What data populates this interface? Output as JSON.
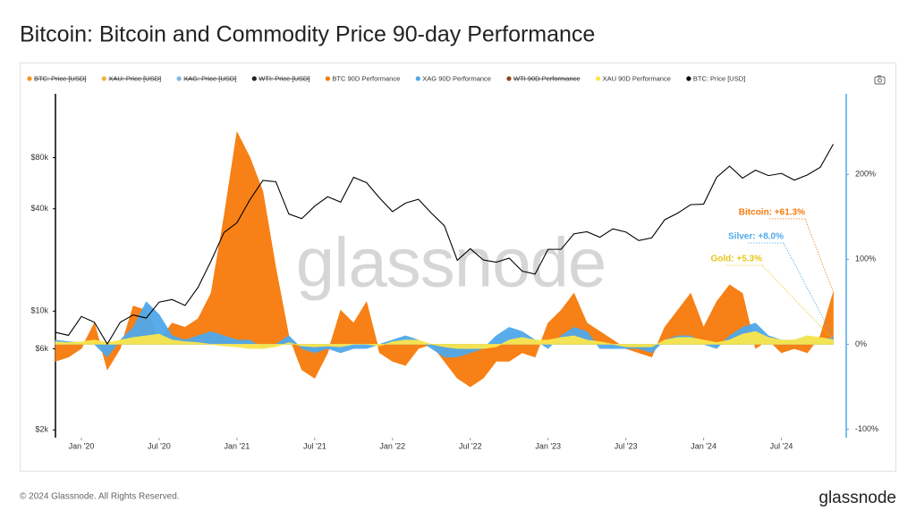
{
  "header": {
    "title": "Bitcoin: Bitcoin and Commodity Price 90-day Performance"
  },
  "footer": {
    "copyright": "© 2024 Glassnode. All Rights Reserved.",
    "logo": "glassnode"
  },
  "chart_data": {
    "type": "area",
    "watermark": "glassnode",
    "x": [
      "2019-11",
      "2019-12",
      "2020-01",
      "2020-02",
      "2020-03",
      "2020-04",
      "2020-05",
      "2020-06",
      "2020-07",
      "2020-08",
      "2020-09",
      "2020-10",
      "2020-11",
      "2020-12",
      "2021-01",
      "2021-02",
      "2021-03",
      "2021-04",
      "2021-05",
      "2021-06",
      "2021-07",
      "2021-08",
      "2021-09",
      "2021-10",
      "2021-11",
      "2021-12",
      "2022-01",
      "2022-02",
      "2022-03",
      "2022-04",
      "2022-05",
      "2022-06",
      "2022-07",
      "2022-08",
      "2022-09",
      "2022-10",
      "2022-11",
      "2022-12",
      "2023-01",
      "2023-02",
      "2023-03",
      "2023-04",
      "2023-05",
      "2023-06",
      "2023-07",
      "2023-08",
      "2023-09",
      "2023-10",
      "2023-11",
      "2023-12",
      "2024-01",
      "2024-02",
      "2024-03",
      "2024-04",
      "2024-05",
      "2024-06",
      "2024-07",
      "2024-08",
      "2024-09",
      "2024-10",
      "2024-11"
    ],
    "xlim": [
      "2019-11",
      "2024-12"
    ],
    "xticks": [
      {
        "value": "2020-01",
        "label": "Jan '20"
      },
      {
        "value": "2020-07",
        "label": "Jul '20"
      },
      {
        "value": "2021-01",
        "label": "Jan '21"
      },
      {
        "value": "2021-07",
        "label": "Jul '21"
      },
      {
        "value": "2022-01",
        "label": "Jan '22"
      },
      {
        "value": "2022-07",
        "label": "Jul '22"
      },
      {
        "value": "2023-01",
        "label": "Jan '23"
      },
      {
        "value": "2023-07",
        "label": "Jul '23"
      },
      {
        "value": "2024-01",
        "label": "Jan '24"
      },
      {
        "value": "2024-07",
        "label": "Jul '24"
      }
    ],
    "ylim": [
      1800,
      190000
    ],
    "log_scale": true,
    "yticks": [
      {
        "value": 2000,
        "label": "$2k"
      },
      {
        "value": 6000,
        "label": "$6k"
      },
      {
        "value": 10000,
        "label": "$10k"
      },
      {
        "value": 40000,
        "label": "$40k"
      },
      {
        "value": 80000,
        "label": "$80k"
      }
    ],
    "y2lim": [
      -110,
      295
    ],
    "y2ticks": [
      {
        "value": -100,
        "label": "-100%"
      },
      {
        "value": 0,
        "label": "0%"
      },
      {
        "value": 100,
        "label": "100%"
      },
      {
        "value": 200,
        "label": "200%"
      }
    ],
    "series": [
      {
        "name": "BTC: Price [USD]",
        "color": "#f7931a",
        "hidden": true
      },
      {
        "name": "XAU: Price [USD]",
        "color": "#f0b43c",
        "hidden": true
      },
      {
        "name": "XAG: Price [USD]",
        "color": "#7fb6e3",
        "hidden": true
      },
      {
        "name": "WTI: Price [USD]",
        "color": "#222222",
        "hidden": true
      },
      {
        "name": "BTC 90D Performance",
        "color": "#f77a0a",
        "axis": "y2",
        "values": [
          -20,
          -15,
          -5,
          25,
          -30,
          -5,
          45,
          40,
          5,
          25,
          20,
          30,
          60,
          150,
          250,
          220,
          180,
          90,
          10,
          -30,
          -40,
          -10,
          40,
          25,
          50,
          -10,
          -20,
          -25,
          -5,
          0,
          -20,
          -40,
          -50,
          -40,
          -20,
          -20,
          -10,
          -15,
          25,
          40,
          60,
          25,
          15,
          5,
          -5,
          -10,
          -15,
          20,
          40,
          60,
          20,
          50,
          70,
          60,
          -5,
          5,
          -10,
          -5,
          -10,
          10,
          61.3
        ]
      },
      {
        "name": "XAG 90D Performance",
        "color": "#4fa8ea",
        "axis": "y2",
        "values": [
          5,
          3,
          2,
          0,
          -15,
          5,
          20,
          50,
          35,
          10,
          5,
          10,
          15,
          10,
          5,
          5,
          -5,
          0,
          10,
          -5,
          -10,
          -5,
          -10,
          -5,
          -5,
          0,
          5,
          10,
          5,
          -5,
          -15,
          -15,
          -10,
          -5,
          10,
          20,
          15,
          5,
          -5,
          10,
          20,
          15,
          -5,
          -5,
          -5,
          -5,
          -10,
          5,
          10,
          10,
          0,
          -5,
          10,
          20,
          25,
          10,
          5,
          5,
          10,
          5,
          8
        ]
      },
      {
        "name": "WTI 90D Performance",
        "color": "#8b4a1c",
        "axis": "y2",
        "hidden": true
      },
      {
        "name": "XAU 90D Performance",
        "color": "#fbe64c",
        "axis": "y2",
        "values": [
          3,
          2,
          3,
          5,
          2,
          5,
          8,
          10,
          12,
          5,
          3,
          2,
          0,
          -2,
          -3,
          -5,
          -5,
          -3,
          2,
          -2,
          -3,
          -2,
          -3,
          0,
          0,
          -2,
          3,
          5,
          5,
          0,
          -3,
          -5,
          -5,
          -5,
          -3,
          5,
          8,
          5,
          5,
          8,
          10,
          5,
          3,
          0,
          -3,
          -3,
          -3,
          5,
          8,
          8,
          5,
          2,
          5,
          12,
          15,
          8,
          5,
          5,
          10,
          8,
          5.3
        ]
      },
      {
        "name": "BTC: Price [USD]",
        "color": "#000000",
        "values": [
          7500,
          7200,
          9300,
          8600,
          6400,
          8600,
          9500,
          9100,
          11300,
          11700,
          10800,
          13800,
          19700,
          29000,
          33100,
          45200,
          58800,
          57700,
          37300,
          35000,
          41500,
          47100,
          43800,
          61300,
          57000,
          46300,
          38500,
          43200,
          45500,
          37700,
          31800,
          19900,
          23300,
          20000,
          19400,
          20500,
          17200,
          16500,
          23100,
          23100,
          28500,
          29300,
          27200,
          30500,
          29200,
          26000,
          27000,
          34500,
          37700,
          42300,
          42600,
          61200,
          71300,
          60600,
          67500,
          62700,
          64600,
          59000,
          63300,
          70200,
          96000
        ]
      }
    ],
    "annotations": [
      {
        "text": "Bitcoin: +61.3%",
        "color": "#f77a0a",
        "series": 4
      },
      {
        "text": "Silver: +8.0%",
        "color": "#4fa8ea",
        "series": 5
      },
      {
        "text": "Gold: +5.3%",
        "color": "#e6c619",
        "series": 7
      }
    ]
  }
}
